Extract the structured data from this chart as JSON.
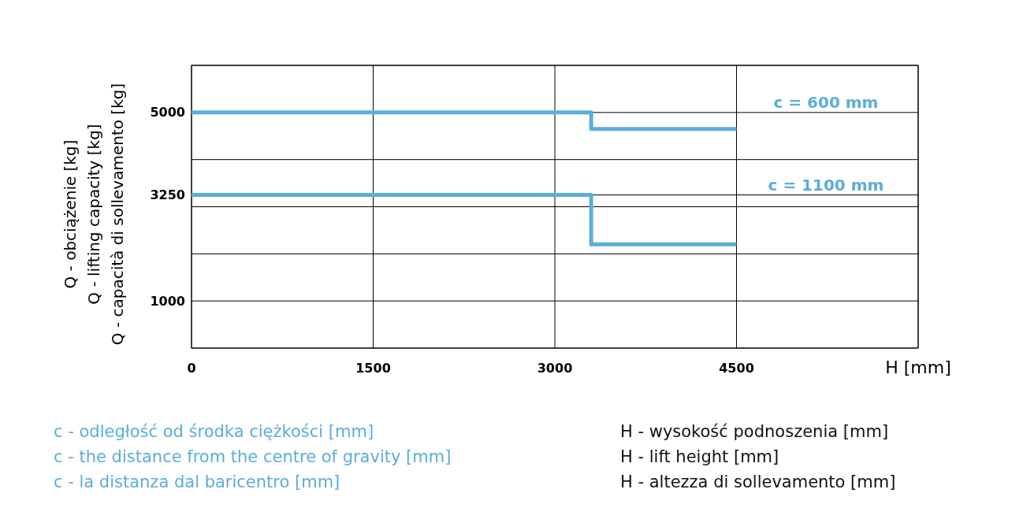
{
  "chart_data": {
    "type": "step",
    "xlabel": "H [mm]",
    "ylabel": "Q - obciążenie [kg]\nQ - lifting capacity [kg]\nQ - capacità di sollevamento [kg]",
    "xlim": [
      0,
      6000
    ],
    "xticks": [
      0,
      1500,
      3000,
      4500,
      {
        "value": 6000,
        "label": null
      }
    ],
    "ylim": [
      0,
      6000
    ],
    "yticks": [
      {
        "value": 0,
        "label": null
      },
      1000,
      {
        "value": 2000,
        "label": null
      },
      {
        "value": 3000,
        "label": null
      },
      3250,
      {
        "value": 4000,
        "label": null
      },
      5000,
      {
        "value": 6000,
        "label": null
      }
    ],
    "grid": true,
    "legend": false,
    "series": [
      {
        "name": "c = 600 mm",
        "color": "#5aaed9",
        "x": [
          0,
          3300,
          4500
        ],
        "values": [
          5000,
          4650,
          4650
        ]
      },
      {
        "name": "c = 1100 mm",
        "color": "#5aaed9",
        "x": [
          0,
          3300,
          4500
        ],
        "values": [
          3250,
          2200,
          2200
        ]
      }
    ],
    "annotations": [
      "c - odległość od środka ciężkości [mm]",
      "c - the distance from the centre of gravity [mm]",
      "c - la distanza dal baricentro [mm]",
      "H - wysokość podnoszenia [mm]",
      "H - lift height [mm]",
      "H - altezza di sollevamento [mm]"
    ]
  }
}
